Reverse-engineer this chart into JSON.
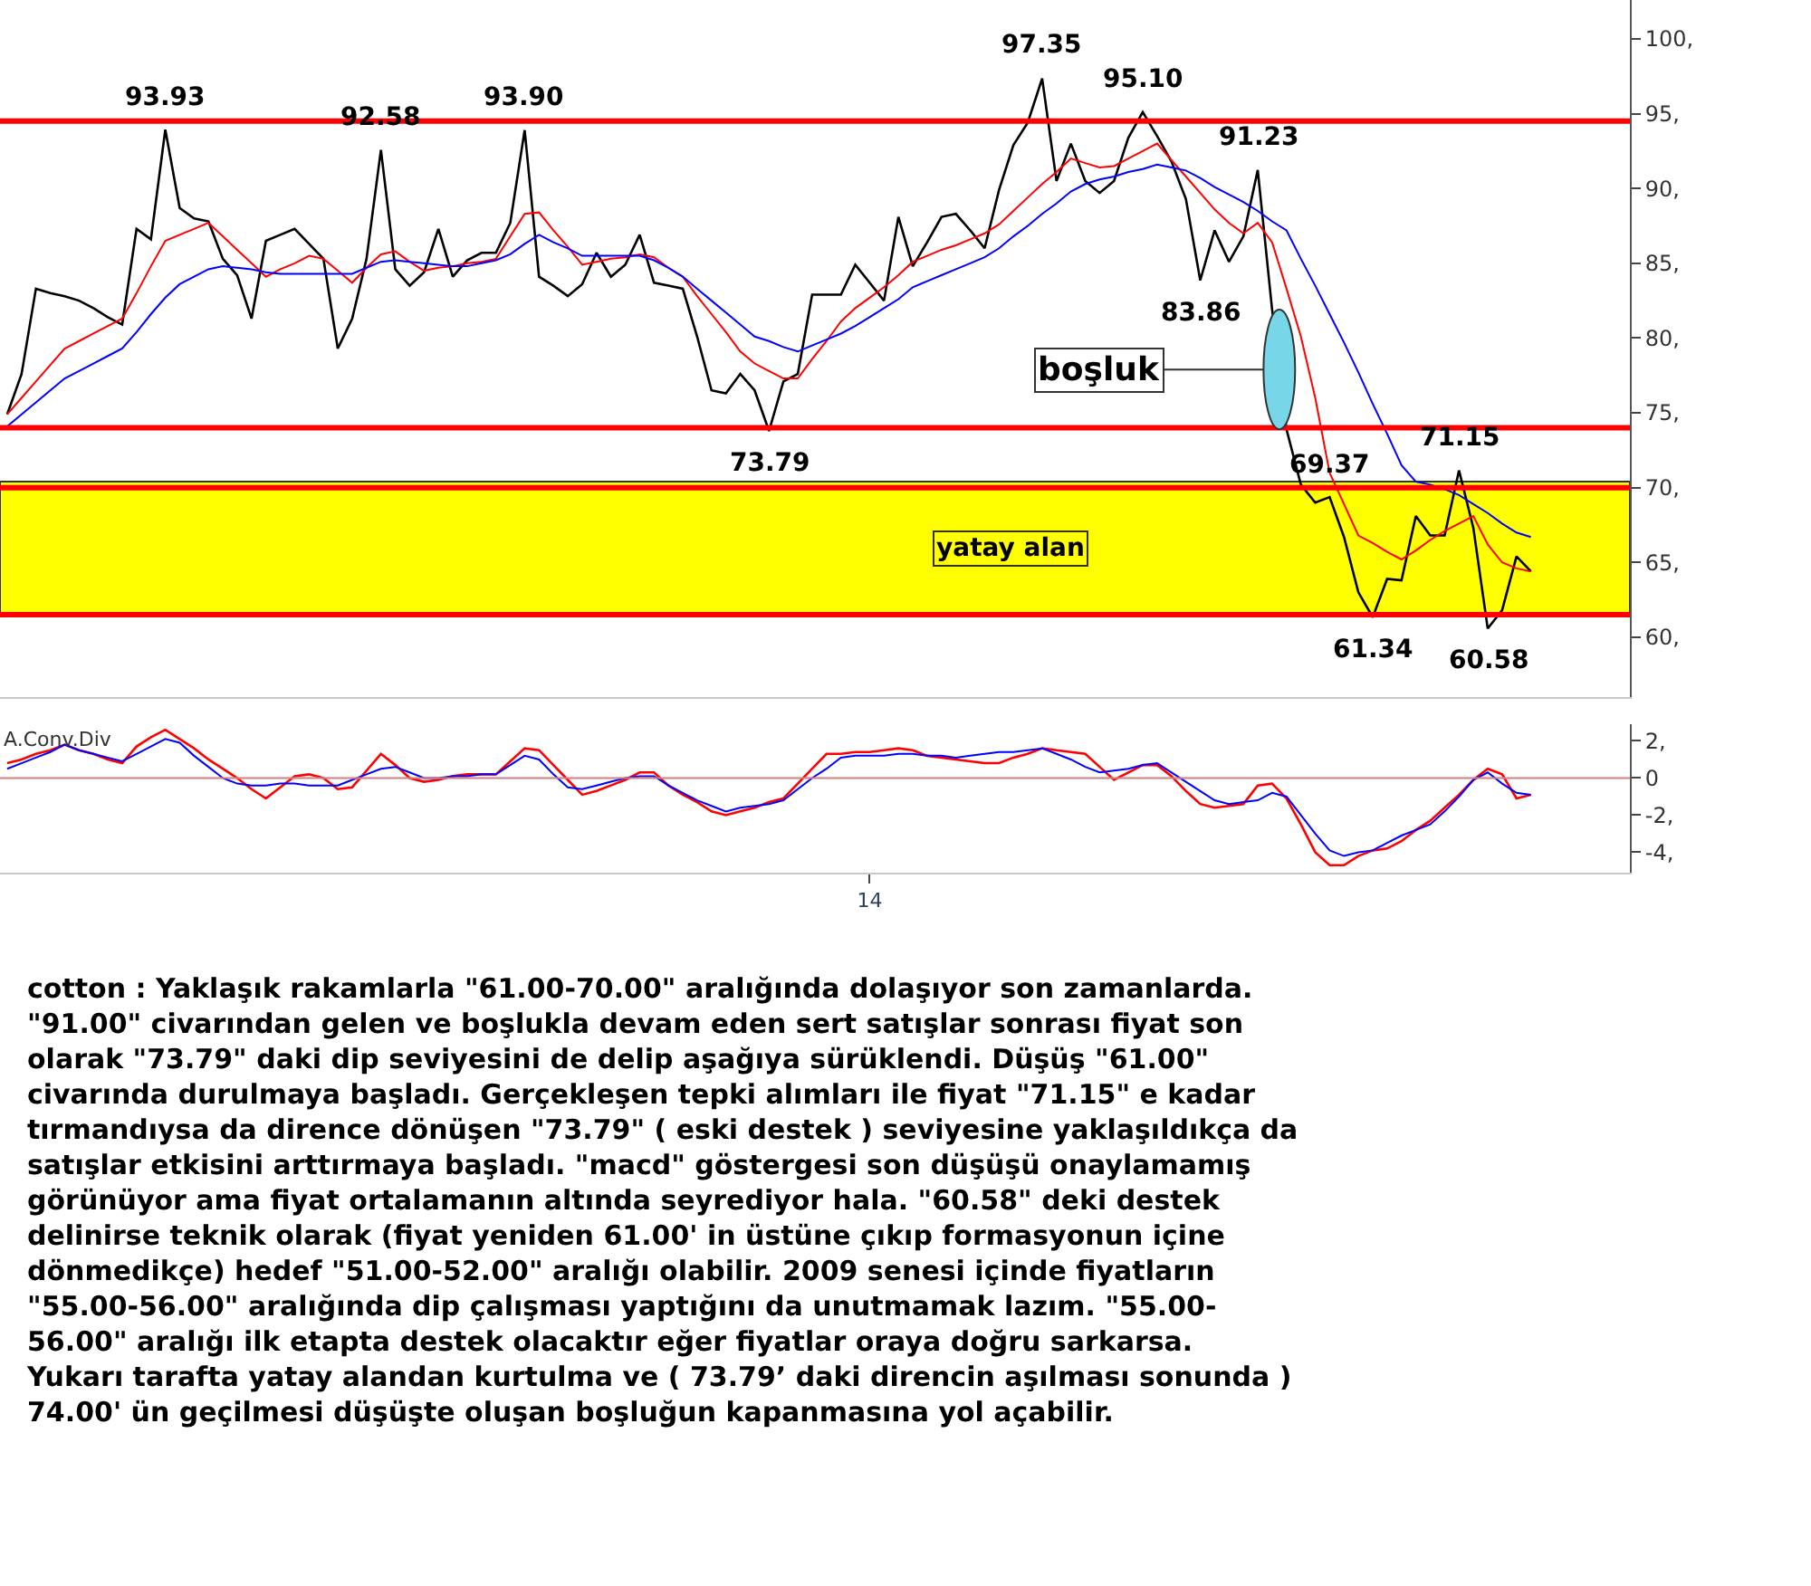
{
  "chart_data": [
    {
      "type": "line",
      "categories": [
        null,
        null,
        null,
        null,
        null,
        null,
        null,
        null,
        null,
        null,
        null,
        null,
        null,
        null,
        null,
        null,
        null,
        null,
        null,
        null,
        null,
        null,
        null,
        null,
        null,
        null,
        null,
        null,
        null,
        null,
        null,
        null,
        null,
        null,
        null,
        null,
        null,
        null,
        null,
        null,
        null,
        null,
        null,
        null,
        null,
        null,
        null,
        null,
        null,
        null,
        null,
        null,
        null,
        null,
        null,
        null,
        null,
        null,
        null,
        null,
        null,
        null,
        null,
        null,
        null,
        null,
        null,
        null,
        null,
        null,
        null,
        null,
        null,
        null,
        null,
        null,
        null,
        null,
        null,
        null,
        null,
        null,
        null,
        null,
        null,
        null,
        null,
        null,
        null,
        null,
        null,
        null,
        null,
        null,
        null,
        null,
        null,
        null,
        null,
        null,
        null,
        null,
        null,
        null,
        null,
        null,
        null
      ],
      "ylim": [
        56,
        102.6
      ],
      "yticks": [
        {
          "value": 60,
          "label": "60,"
        },
        {
          "value": 65,
          "label": "65,"
        },
        {
          "value": 70,
          "label": "70,"
        },
        {
          "value": 75,
          "label": "75,"
        },
        {
          "value": 80,
          "label": "80,"
        },
        {
          "value": 85,
          "label": "85,"
        },
        {
          "value": 90,
          "label": "90,"
        },
        {
          "value": 95,
          "label": "95,"
        },
        {
          "value": 100,
          "label": "100,"
        }
      ],
      "tick_labels": "y",
      "grid": false,
      "series": [
        {
          "color": "#000000",
          "values": [
            74.9,
            77.6,
            83.3,
            83.0,
            82.8,
            82.5,
            82.0,
            81.4,
            80.9,
            87.3,
            86.6,
            93.93,
            88.7,
            88.0,
            87.8,
            85.3,
            84.2,
            81.3,
            86.5,
            86.9,
            87.3,
            86.3,
            85.3,
            79.3,
            81.3,
            85.3,
            92.58,
            84.6,
            83.5,
            84.4,
            87.3,
            84.1,
            85.2,
            85.7,
            85.7,
            87.7,
            93.9,
            84.1,
            83.5,
            82.8,
            83.6,
            85.7,
            84.1,
            84.9,
            86.9,
            83.7,
            83.5,
            83.3,
            80.1,
            76.5,
            76.3,
            77.6,
            76.5,
            73.79,
            77.1,
            77.6,
            82.9,
            82.9,
            82.9,
            84.9,
            83.7,
            82.5,
            88.1,
            84.8,
            86.4,
            88.1,
            88.3,
            87.2,
            86.0,
            89.9,
            92.9,
            94.4,
            97.35,
            90.5,
            93.0,
            90.5,
            89.7,
            90.5,
            93.4,
            95.1,
            93.5,
            91.8,
            89.3,
            83.86,
            87.2,
            85.1,
            86.8,
            91.23,
            81.9,
            73.9,
            70.2,
            69.0,
            69.37,
            66.7,
            63.0,
            61.34,
            63.9,
            63.8,
            68.1,
            66.8,
            66.8,
            71.15,
            67.3,
            60.58,
            61.8,
            65.4,
            64.4
          ]
        },
        {
          "color": "#ff0000",
          "values": [
            74.9,
            76.0,
            77.1,
            78.2,
            79.3,
            79.8,
            80.3,
            80.8,
            81.3,
            83.0,
            84.8,
            86.5,
            86.9,
            87.3,
            87.7,
            86.8,
            85.9,
            85.0,
            84.1,
            84.6,
            85.0,
            85.5,
            85.3,
            84.5,
            83.7,
            84.7,
            85.6,
            85.8,
            85.1,
            84.5,
            84.7,
            84.8,
            85.0,
            85.1,
            85.3,
            86.8,
            88.3,
            88.4,
            87.2,
            86.1,
            84.9,
            85.1,
            85.3,
            85.4,
            85.6,
            85.4,
            84.7,
            84.1,
            82.8,
            81.6,
            80.4,
            79.1,
            78.3,
            77.8,
            77.3,
            77.3,
            78.6,
            79.8,
            81.1,
            82.0,
            82.7,
            83.4,
            84.2,
            85.1,
            85.5,
            85.9,
            86.2,
            86.6,
            87.0,
            87.6,
            88.5,
            89.4,
            90.3,
            91.1,
            92.0,
            91.7,
            91.4,
            91.5,
            92.0,
            92.5,
            93.0,
            91.9,
            90.8,
            89.7,
            88.6,
            87.7,
            87.0,
            87.7,
            86.4,
            83.3,
            80.1,
            76.0,
            71.0,
            68.9,
            66.8,
            66.3,
            65.7,
            65.2,
            65.8,
            66.5,
            67.1,
            67.6,
            68.1,
            66.2,
            65.0,
            64.6,
            64.4
          ]
        },
        {
          "color": "#0000ff",
          "values": [
            74.1,
            74.9,
            75.7,
            76.5,
            77.3,
            77.8,
            78.3,
            78.8,
            79.3,
            80.4,
            81.6,
            82.7,
            83.6,
            84.1,
            84.6,
            84.8,
            84.7,
            84.6,
            84.4,
            84.3,
            84.3,
            84.3,
            84.3,
            84.3,
            84.3,
            84.7,
            85.1,
            85.2,
            85.1,
            85.0,
            84.9,
            84.8,
            84.8,
            85.0,
            85.2,
            85.6,
            86.3,
            86.9,
            86.4,
            86.0,
            85.5,
            85.5,
            85.5,
            85.5,
            85.5,
            85.2,
            84.7,
            84.1,
            83.3,
            82.5,
            81.7,
            80.9,
            80.1,
            79.8,
            79.4,
            79.1,
            79.5,
            79.9,
            80.3,
            80.8,
            81.4,
            82.0,
            82.6,
            83.4,
            83.8,
            84.2,
            84.6,
            85.0,
            85.4,
            86.0,
            86.8,
            87.5,
            88.3,
            89.0,
            89.8,
            90.3,
            90.6,
            90.8,
            91.1,
            91.3,
            91.6,
            91.4,
            91.2,
            90.7,
            90.1,
            89.6,
            89.1,
            88.5,
            87.8,
            87.2,
            85.3,
            83.5,
            81.6,
            79.7,
            77.7,
            75.6,
            73.6,
            71.5,
            70.4,
            70.2,
            69.9,
            69.5,
            68.9,
            68.3,
            67.6,
            67.0,
            66.7
          ]
        }
      ],
      "ref_lines": [
        {
          "axis": "y",
          "value": 94.5,
          "color": "#ff0000"
        },
        {
          "axis": "y",
          "value": 74.0,
          "color": "#ff0000"
        },
        {
          "axis": "y",
          "value": 70.0,
          "color": "#ff0000"
        },
        {
          "axis": "y",
          "value": 61.5,
          "color": "#ff0000"
        }
      ],
      "bands": [
        {
          "axis": "y",
          "from": 61.5,
          "to": 70.4,
          "label": "yatay alan",
          "color": "#ffff00"
        }
      ],
      "annotations": [
        {
          "text": "93.93",
          "y": 93.93
        },
        {
          "text": "92.58",
          "y": 92.58
        },
        {
          "text": "93.90",
          "y": 93.9
        },
        {
          "text": "73.79",
          "y": 73.79
        },
        {
          "text": "97.35",
          "y": 97.35
        },
        {
          "text": "95.10",
          "y": 95.1
        },
        {
          "text": "91.23",
          "y": 91.23
        },
        "boşluk",
        {
          "text": "83.86",
          "y": 83.86
        },
        {
          "text": "69.37",
          "y": 69.37
        },
        {
          "text": "71.15",
          "y": 71.15
        },
        {
          "text": "61.34",
          "y": 61.34
        },
        {
          "text": "60.58",
          "y": 60.58
        }
      ]
    },
    {
      "type": "line",
      "title": "A.Conv.Div",
      "categories": [
        null,
        null,
        null,
        null,
        null,
        null,
        null,
        null,
        null,
        null,
        null,
        null,
        null,
        null,
        null,
        null,
        null,
        null,
        null,
        null,
        null,
        null,
        null,
        null,
        null,
        null,
        null,
        null,
        null,
        null,
        null,
        null,
        null,
        null,
        null,
        null,
        null,
        null,
        null,
        null,
        null,
        null,
        null,
        null,
        null,
        null,
        null,
        null,
        null,
        null,
        null,
        null,
        null,
        null,
        null,
        null,
        null,
        null,
        null,
        null,
        "14",
        null,
        null,
        null,
        null,
        null,
        null,
        null,
        null,
        null,
        null,
        null,
        null,
        null,
        null,
        null,
        null,
        null,
        null,
        null,
        null,
        null,
        null,
        null,
        null,
        null,
        null,
        null,
        null,
        null,
        null,
        null,
        null,
        null,
        null,
        null,
        null,
        null,
        null,
        null,
        null,
        null,
        null,
        null,
        null,
        null,
        null
      ],
      "ylim": [
        -5.1,
        2.9
      ],
      "yticks": [
        {
          "value": 2,
          "label": "2,"
        },
        {
          "value": 0,
          "label": "0"
        },
        {
          "value": -2,
          "label": "-2,"
        },
        {
          "value": -4,
          "label": "-4,"
        }
      ],
      "grid": false,
      "series": [
        {
          "color": "#ff0000",
          "values": [
            0.8,
            1.0,
            1.3,
            1.5,
            1.8,
            1.5,
            1.3,
            1.0,
            0.8,
            1.7,
            2.2,
            2.6,
            2.1,
            1.6,
            1.0,
            0.5,
            0.0,
            -0.6,
            -1.1,
            -0.5,
            0.1,
            0.2,
            0.0,
            -0.6,
            -0.5,
            0.4,
            1.3,
            0.7,
            0.0,
            -0.2,
            -0.1,
            0.1,
            0.2,
            0.2,
            0.2,
            0.9,
            1.6,
            1.5,
            0.7,
            -0.1,
            -0.9,
            -0.7,
            -0.4,
            -0.1,
            0.3,
            0.3,
            -0.4,
            -0.9,
            -1.3,
            -1.8,
            -2.0,
            -1.8,
            -1.6,
            -1.3,
            -1.1,
            -0.3,
            0.5,
            1.3,
            1.3,
            1.4,
            1.4,
            1.5,
            1.6,
            1.5,
            1.2,
            1.1,
            1.0,
            0.9,
            0.8,
            0.8,
            1.1,
            1.3,
            1.6,
            1.5,
            1.4,
            1.3,
            0.6,
            -0.1,
            0.3,
            0.7,
            0.7,
            0.1,
            -0.7,
            -1.4,
            -1.6,
            -1.5,
            -1.4,
            -0.4,
            -0.3,
            -1.1,
            -2.5,
            -4.0,
            -4.7,
            -4.7,
            -4.2,
            -3.9,
            -3.8,
            -3.4,
            -2.8,
            -2.3,
            -1.6,
            -0.9,
            -0.1,
            0.5,
            0.2,
            -1.1,
            -0.9
          ]
        },
        {
          "color": "#0000ff",
          "values": [
            0.5,
            0.8,
            1.1,
            1.4,
            1.8,
            1.5,
            1.3,
            1.1,
            0.9,
            1.3,
            1.7,
            2.1,
            1.9,
            1.2,
            0.6,
            0.0,
            -0.3,
            -0.4,
            -0.4,
            -0.3,
            -0.3,
            -0.4,
            -0.4,
            -0.4,
            -0.1,
            0.2,
            0.5,
            0.6,
            0.3,
            0.0,
            0.0,
            0.1,
            0.1,
            0.2,
            0.2,
            0.7,
            1.2,
            1.0,
            0.2,
            -0.5,
            -0.6,
            -0.4,
            -0.2,
            0.0,
            0.1,
            0.1,
            -0.4,
            -0.8,
            -1.2,
            -1.5,
            -1.8,
            -1.6,
            -1.5,
            -1.4,
            -1.2,
            -0.6,
            0.0,
            0.5,
            1.1,
            1.2,
            1.2,
            1.2,
            1.3,
            1.3,
            1.2,
            1.2,
            1.1,
            1.2,
            1.3,
            1.4,
            1.4,
            1.5,
            1.6,
            1.3,
            1.0,
            0.6,
            0.3,
            0.4,
            0.5,
            0.7,
            0.8,
            0.3,
            -0.2,
            -0.7,
            -1.2,
            -1.4,
            -1.3,
            -1.2,
            -0.8,
            -1.0,
            -2.0,
            -3.0,
            -3.9,
            -4.2,
            -4.0,
            -3.9,
            -3.5,
            -3.1,
            -2.8,
            -2.5,
            -1.8,
            -1.0,
            -0.1,
            0.3,
            -0.3,
            -0.8,
            -0.9
          ]
        }
      ],
      "ref_lines": [
        {
          "axis": "y",
          "value": 0,
          "color": "#d08080"
        }
      ],
      "annotations": [
        "cotton : Yaklaşık rakamlarla \"61.00-70.00\" aralığında dolaşıyor son zamanlarda.\n\"91.00\" civarından gelen ve boşlukla devam eden sert satışlar sonrası fiyat son\nolarak \"73.79\" daki dip seviyesini de delip aşağıya sürüklendi. Düşüş \"61.00\"\ncivarında durulmaya başladı. Gerçekleşen tepki alımları ile fiyat \"71.15\" e kadar\ntırmandıysa da dirence dönüşen \"73.79\" ( eski destek ) seviyesine yaklaşıldıkça da\nsatışlar etkisini arttırmaya başladı. \"macd\" göstergesi son düşüşü onaylamamış\ngörünüyor ama fiyat ortalamanın altında seyrediyor hala. \"60.58\" deki destek\ndelinirse teknik olarak (fiyat yeniden 61.00' in üstüne çıkıp formasyonun içine\ndönmedikçe) hedef \"51.00-52.00\" aralığı olabilir. 2009 senesi içinde fiyatların\n\"55.00-56.00\" aralığında dip çalışması yaptığını da unutmamak lazım. \"55.00-\n56.00\" aralığı ilk etapta destek olacaktır eğer fiyatlar oraya doğru sarkarsa.\nYukarı tarafta yatay alandan kurtulma ve ( 73.79’ daki direncin aşılması sonunda )\n74.00' ün geçilmesi düşüşte oluşan boşluğun kapanmasına yol açabilir."
      ]
    }
  ]
}
